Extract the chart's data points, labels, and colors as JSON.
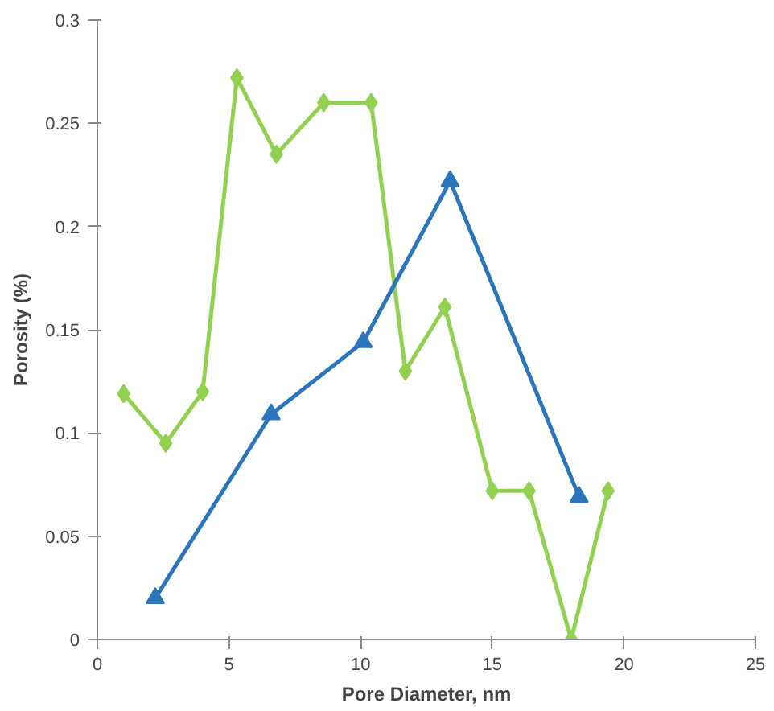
{
  "chart_data": {
    "type": "line",
    "xlabel": "Pore Diameter, nm",
    "ylabel": "Porosity (%)",
    "xlim": [
      0,
      25
    ],
    "xticks": [
      0,
      5,
      10,
      15,
      20,
      25
    ],
    "ylim": [
      0,
      0.3
    ],
    "yticks": [
      0,
      0.05,
      0.1,
      0.15,
      0.2,
      0.25,
      0.3
    ],
    "grid": false,
    "line_style": "solid",
    "series": [
      {
        "color": "#92d050",
        "marker": "diamond",
        "x": [
          1.0,
          2.6,
          4.0,
          5.3,
          6.8,
          8.6,
          10.4,
          11.7,
          13.2,
          15.0,
          16.4,
          18.0,
          19.4
        ],
        "values": [
          0.119,
          0.095,
          0.12,
          0.272,
          0.235,
          0.26,
          0.26,
          0.13,
          0.161,
          0.072,
          0.072,
          0.0,
          0.072
        ]
      },
      {
        "color": "#2a75bb",
        "marker": "triangle",
        "x": [
          2.2,
          6.6,
          10.1,
          13.4,
          18.3
        ],
        "values": [
          0.02,
          0.109,
          0.144,
          0.222,
          0.069
        ]
      }
    ]
  }
}
